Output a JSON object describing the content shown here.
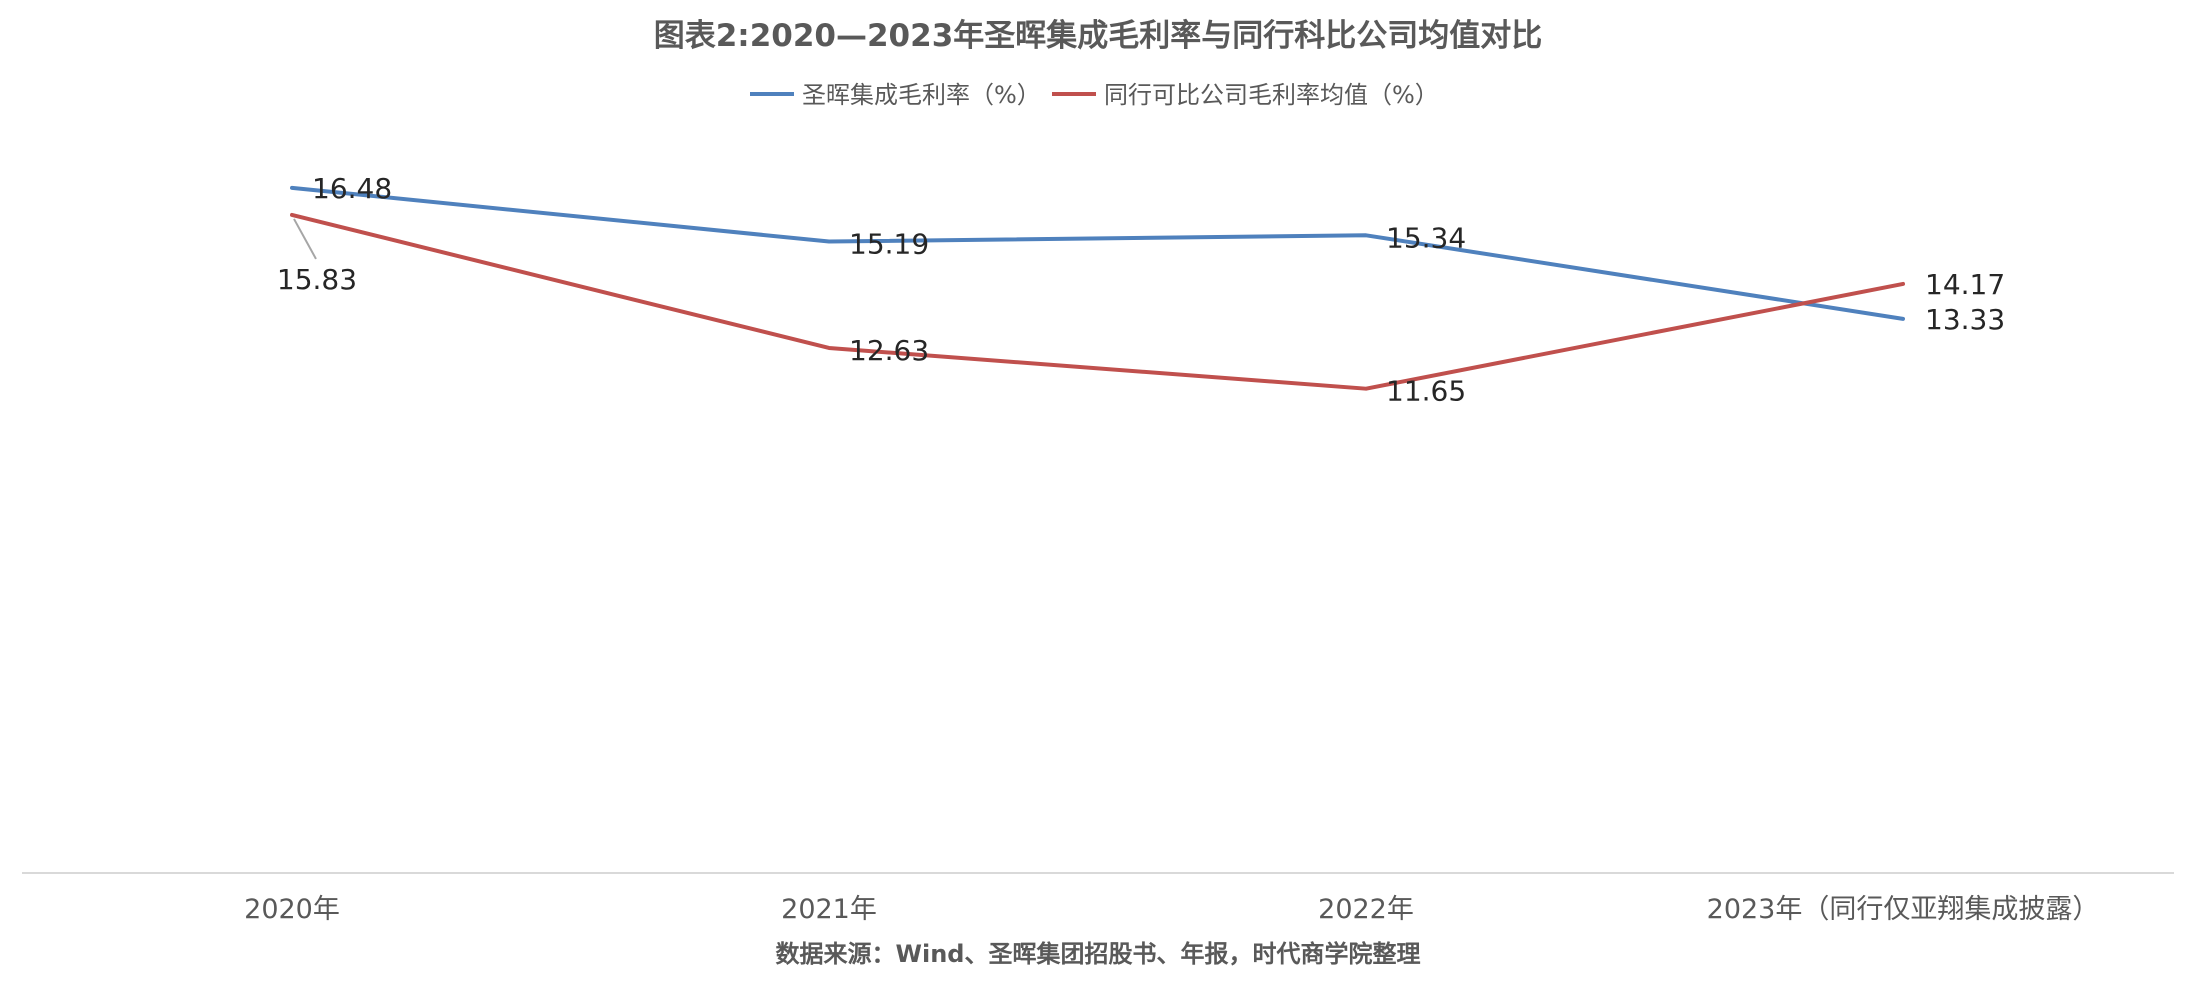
{
  "chart_data": {
    "type": "line",
    "title": "图表2:2020—2023年圣晖集成毛利率与同行科比公司均值对比",
    "categories": [
      "2020年",
      "2021年",
      "2022年",
      "2023年（同行仅亚翔集成披露）"
    ],
    "series": [
      {
        "name": "圣晖集成毛利率（%）",
        "color": "#4f81bd",
        "values": [
          16.48,
          15.19,
          15.34,
          13.33
        ]
      },
      {
        "name": "同行可比公司毛利率均值（%）",
        "color": "#c0504d",
        "values": [
          15.83,
          12.63,
          11.65,
          14.17
        ]
      }
    ],
    "ylim": [
      0,
      21
    ],
    "grid": false,
    "legend_position": "top",
    "source": "数据来源：Wind、圣晖集团招股书、年报，时代商学院整理"
  }
}
